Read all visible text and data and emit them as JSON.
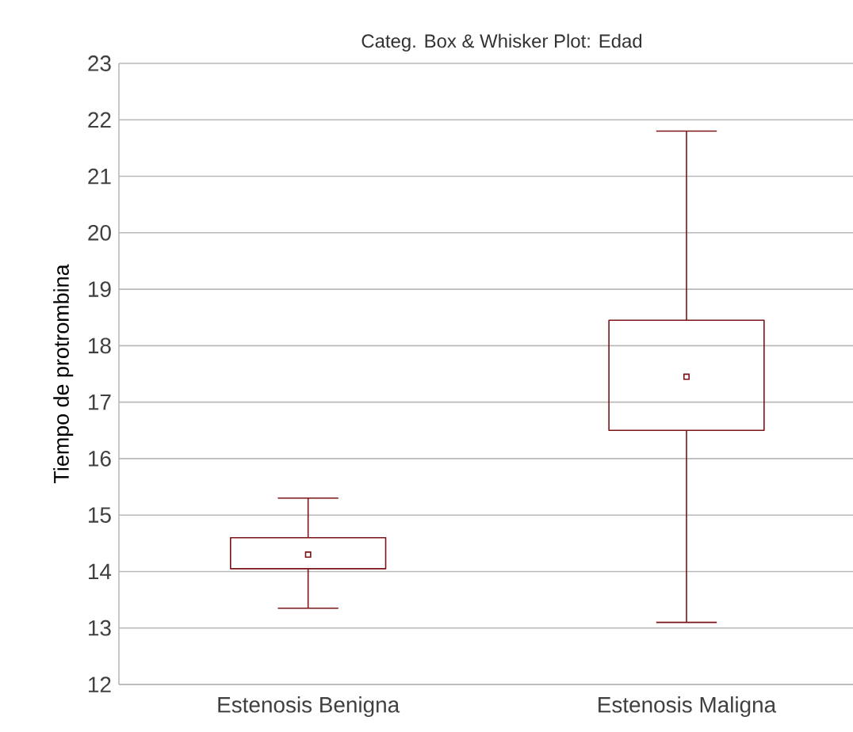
{
  "chart_data": {
    "type": "box",
    "title": "Categ. Box & Whisker Plot: Edad",
    "ylabel": "Tiempo de protrombina",
    "categories": [
      "Estenosis Benigna",
      "Estenosis Maligna"
    ],
    "series": [
      {
        "color": "#7b1416",
        "boxes": [
          {
            "low": 13.35,
            "q1": 14.05,
            "median": 14.3,
            "q3": 14.6,
            "high": 15.3
          },
          {
            "low": 13.1,
            "q1": 16.5,
            "median": 17.45,
            "q3": 18.45,
            "high": 21.8
          }
        ]
      }
    ],
    "ylim": [
      12,
      23
    ],
    "yticks": [
      12,
      13,
      14,
      15,
      16,
      17,
      18,
      19,
      20,
      21,
      22,
      23
    ],
    "grid": "y"
  }
}
